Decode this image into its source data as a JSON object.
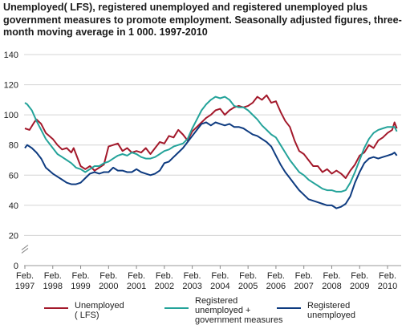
{
  "title": "Unemployed( LFS), registered unemployed and registered unemployed plus government measures to promote employment. Seasonally adjusted figures, three-month moving average in 1 000. 1997-2010",
  "chart_data": {
    "type": "line",
    "title": "Unemployed( LFS), registered unemployed and registered unemployed plus government measures to promote employment. Seasonally adjusted figures, three-month moving average in 1 000. 1997-2010",
    "xlabel": "",
    "ylabel": "",
    "ylim": [
      0,
      140
    ],
    "yticks": [
      0,
      20,
      40,
      60,
      80,
      100,
      120,
      140
    ],
    "y_axis_break": true,
    "grid": "horizontal",
    "legend_position": "bottom",
    "x_tick_labels": [
      {
        "month": "Feb.",
        "year": "1997"
      },
      {
        "month": "Feb.",
        "year": "1998"
      },
      {
        "month": "Feb.",
        "year": "1999"
      },
      {
        "month": "Feb.",
        "year": "2000"
      },
      {
        "month": "Feb.",
        "year": "2001"
      },
      {
        "month": "Feb.",
        "year": "2002"
      },
      {
        "month": "Feb.",
        "year": "2003"
      },
      {
        "month": "Feb.",
        "year": "2004"
      },
      {
        "month": "Feb.",
        "year": "2005"
      },
      {
        "month": "Feb.",
        "year": "2006"
      },
      {
        "month": "Feb.",
        "year": "2007"
      },
      {
        "month": "Feb.",
        "year": "2008"
      },
      {
        "month": "Feb.",
        "year": "2009"
      },
      {
        "month": "Feb.",
        "year": "2010"
      }
    ],
    "series": [
      {
        "name": "Unemployed ( LFS)",
        "color": "#a3192b",
        "points": [
          [
            "1997-02",
            91
          ],
          [
            "1997-04",
            90
          ],
          [
            "1997-06",
            95
          ],
          [
            "1997-07",
            97
          ],
          [
            "1997-09",
            94
          ],
          [
            "1997-11",
            88
          ],
          [
            "1998-02",
            84
          ],
          [
            "1998-04",
            80
          ],
          [
            "1998-06",
            77
          ],
          [
            "1998-08",
            78
          ],
          [
            "1998-10",
            75
          ],
          [
            "1998-11",
            78
          ],
          [
            "1999-01",
            70
          ],
          [
            "1999-02",
            66
          ],
          [
            "1999-04",
            64
          ],
          [
            "1999-06",
            66
          ],
          [
            "1999-08",
            63
          ],
          [
            "1999-10",
            65
          ],
          [
            "1999-12",
            67
          ],
          [
            "2000-02",
            79
          ],
          [
            "2000-04",
            80
          ],
          [
            "2000-06",
            81
          ],
          [
            "2000-08",
            76
          ],
          [
            "2000-10",
            78
          ],
          [
            "2000-12",
            75
          ],
          [
            "2001-02",
            76
          ],
          [
            "2001-04",
            75
          ],
          [
            "2001-06",
            78
          ],
          [
            "2001-08",
            74
          ],
          [
            "2001-10",
            78
          ],
          [
            "2001-12",
            82
          ],
          [
            "2002-02",
            81
          ],
          [
            "2002-04",
            86
          ],
          [
            "2002-06",
            85
          ],
          [
            "2002-08",
            90
          ],
          [
            "2002-10",
            87
          ],
          [
            "2002-12",
            83
          ],
          [
            "2003-02",
            89
          ],
          [
            "2003-04",
            92
          ],
          [
            "2003-06",
            95
          ],
          [
            "2003-08",
            98
          ],
          [
            "2003-10",
            100
          ],
          [
            "2003-12",
            103
          ],
          [
            "2004-02",
            104
          ],
          [
            "2004-04",
            100
          ],
          [
            "2004-06",
            103
          ],
          [
            "2004-08",
            105
          ],
          [
            "2004-10",
            106
          ],
          [
            "2004-12",
            105
          ],
          [
            "2005-02",
            106
          ],
          [
            "2005-04",
            108
          ],
          [
            "2005-06",
            112
          ],
          [
            "2005-08",
            110
          ],
          [
            "2005-10",
            113
          ],
          [
            "2005-12",
            108
          ],
          [
            "2006-02",
            109
          ],
          [
            "2006-04",
            102
          ],
          [
            "2006-06",
            96
          ],
          [
            "2006-08",
            92
          ],
          [
            "2006-10",
            83
          ],
          [
            "2006-12",
            76
          ],
          [
            "2007-02",
            74
          ],
          [
            "2007-04",
            70
          ],
          [
            "2007-06",
            66
          ],
          [
            "2007-08",
            66
          ],
          [
            "2007-10",
            62
          ],
          [
            "2007-12",
            64
          ],
          [
            "2008-02",
            61
          ],
          [
            "2008-04",
            63
          ],
          [
            "2008-06",
            61
          ],
          [
            "2008-08",
            58
          ],
          [
            "2008-10",
            63
          ],
          [
            "2008-12",
            67
          ],
          [
            "2009-02",
            73
          ],
          [
            "2009-04",
            75
          ],
          [
            "2009-06",
            80
          ],
          [
            "2009-08",
            78
          ],
          [
            "2009-10",
            83
          ],
          [
            "2009-12",
            85
          ],
          [
            "2010-02",
            88
          ],
          [
            "2010-04",
            90
          ],
          [
            "2010-05",
            95
          ],
          [
            "2010-06",
            91
          ]
        ]
      },
      {
        "name": "Registered unemployed + government measures",
        "color": "#24a39a",
        "points": [
          [
            "1997-02",
            108
          ],
          [
            "1997-03",
            107
          ],
          [
            "1997-05",
            103
          ],
          [
            "1997-07",
            96
          ],
          [
            "1997-09",
            90
          ],
          [
            "1997-11",
            84
          ],
          [
            "1998-02",
            78
          ],
          [
            "1998-04",
            74
          ],
          [
            "1998-06",
            72
          ],
          [
            "1998-08",
            70
          ],
          [
            "1998-10",
            68
          ],
          [
            "1998-12",
            65
          ],
          [
            "1999-02",
            64
          ],
          [
            "1999-04",
            62
          ],
          [
            "1999-06",
            64
          ],
          [
            "1999-08",
            66
          ],
          [
            "1999-10",
            66
          ],
          [
            "1999-12",
            68
          ],
          [
            "2000-02",
            69
          ],
          [
            "2000-04",
            71
          ],
          [
            "2000-06",
            73
          ],
          [
            "2000-08",
            74
          ],
          [
            "2000-10",
            73
          ],
          [
            "2000-12",
            75
          ],
          [
            "2001-02",
            74
          ],
          [
            "2001-04",
            72
          ],
          [
            "2001-06",
            71
          ],
          [
            "2001-08",
            71
          ],
          [
            "2001-10",
            72
          ],
          [
            "2001-12",
            74
          ],
          [
            "2002-02",
            76
          ],
          [
            "2002-04",
            77
          ],
          [
            "2002-06",
            79
          ],
          [
            "2002-08",
            80
          ],
          [
            "2002-10",
            81
          ],
          [
            "2002-12",
            84
          ],
          [
            "2003-02",
            91
          ],
          [
            "2003-04",
            97
          ],
          [
            "2003-06",
            103
          ],
          [
            "2003-08",
            107
          ],
          [
            "2003-10",
            110
          ],
          [
            "2003-12",
            112
          ],
          [
            "2004-02",
            111
          ],
          [
            "2004-04",
            112
          ],
          [
            "2004-06",
            110
          ],
          [
            "2004-08",
            106
          ],
          [
            "2004-10",
            105
          ],
          [
            "2004-12",
            105
          ],
          [
            "2005-02",
            103
          ],
          [
            "2005-04",
            100
          ],
          [
            "2005-06",
            97
          ],
          [
            "2005-08",
            93
          ],
          [
            "2005-10",
            90
          ],
          [
            "2005-12",
            87
          ],
          [
            "2006-02",
            85
          ],
          [
            "2006-04",
            80
          ],
          [
            "2006-06",
            75
          ],
          [
            "2006-08",
            70
          ],
          [
            "2006-10",
            66
          ],
          [
            "2006-12",
            62
          ],
          [
            "2007-02",
            60
          ],
          [
            "2007-04",
            57
          ],
          [
            "2007-06",
            55
          ],
          [
            "2007-08",
            53
          ],
          [
            "2007-10",
            51
          ],
          [
            "2007-12",
            50
          ],
          [
            "2008-02",
            50
          ],
          [
            "2008-04",
            49
          ],
          [
            "2008-06",
            49
          ],
          [
            "2008-08",
            50
          ],
          [
            "2008-10",
            55
          ],
          [
            "2008-12",
            62
          ],
          [
            "2009-02",
            70
          ],
          [
            "2009-04",
            78
          ],
          [
            "2009-06",
            84
          ],
          [
            "2009-08",
            88
          ],
          [
            "2009-10",
            90
          ],
          [
            "2009-12",
            91
          ],
          [
            "2010-02",
            92
          ],
          [
            "2010-04",
            92
          ],
          [
            "2010-05",
            92
          ],
          [
            "2010-06",
            89
          ]
        ]
      },
      {
        "name": "Registered unemployed",
        "color": "#0e3b80",
        "points": [
          [
            "1997-02",
            78
          ],
          [
            "1997-03",
            80
          ],
          [
            "1997-05",
            78
          ],
          [
            "1997-07",
            75
          ],
          [
            "1997-09",
            71
          ],
          [
            "1997-11",
            65
          ],
          [
            "1998-02",
            61
          ],
          [
            "1998-04",
            59
          ],
          [
            "1998-06",
            57
          ],
          [
            "1998-08",
            55
          ],
          [
            "1998-10",
            54
          ],
          [
            "1998-12",
            54
          ],
          [
            "1999-02",
            55
          ],
          [
            "1999-04",
            58
          ],
          [
            "1999-06",
            61
          ],
          [
            "1999-08",
            62
          ],
          [
            "1999-10",
            61
          ],
          [
            "1999-12",
            62
          ],
          [
            "2000-02",
            62
          ],
          [
            "2000-04",
            65
          ],
          [
            "2000-06",
            63
          ],
          [
            "2000-08",
            63
          ],
          [
            "2000-10",
            62
          ],
          [
            "2000-12",
            62
          ],
          [
            "2001-02",
            64
          ],
          [
            "2001-04",
            62
          ],
          [
            "2001-06",
            61
          ],
          [
            "2001-08",
            60
          ],
          [
            "2001-10",
            61
          ],
          [
            "2001-12",
            63
          ],
          [
            "2002-02",
            68
          ],
          [
            "2002-04",
            69
          ],
          [
            "2002-06",
            72
          ],
          [
            "2002-08",
            75
          ],
          [
            "2002-10",
            78
          ],
          [
            "2002-12",
            82
          ],
          [
            "2003-02",
            86
          ],
          [
            "2003-04",
            90
          ],
          [
            "2003-06",
            94
          ],
          [
            "2003-08",
            95
          ],
          [
            "2003-10",
            93
          ],
          [
            "2003-12",
            95
          ],
          [
            "2004-02",
            94
          ],
          [
            "2004-04",
            93
          ],
          [
            "2004-06",
            94
          ],
          [
            "2004-08",
            92
          ],
          [
            "2004-10",
            92
          ],
          [
            "2004-12",
            91
          ],
          [
            "2005-02",
            89
          ],
          [
            "2005-04",
            87
          ],
          [
            "2005-06",
            86
          ],
          [
            "2005-08",
            84
          ],
          [
            "2005-10",
            82
          ],
          [
            "2005-12",
            79
          ],
          [
            "2006-02",
            73
          ],
          [
            "2006-04",
            67
          ],
          [
            "2006-06",
            62
          ],
          [
            "2006-08",
            58
          ],
          [
            "2006-10",
            54
          ],
          [
            "2006-12",
            50
          ],
          [
            "2007-02",
            47
          ],
          [
            "2007-04",
            44
          ],
          [
            "2007-06",
            43
          ],
          [
            "2007-08",
            42
          ],
          [
            "2007-10",
            41
          ],
          [
            "2007-12",
            40
          ],
          [
            "2008-02",
            40
          ],
          [
            "2008-04",
            38
          ],
          [
            "2008-06",
            39
          ],
          [
            "2008-08",
            41
          ],
          [
            "2008-10",
            46
          ],
          [
            "2008-12",
            55
          ],
          [
            "2009-02",
            62
          ],
          [
            "2009-04",
            68
          ],
          [
            "2009-06",
            71
          ],
          [
            "2009-08",
            72
          ],
          [
            "2009-10",
            71
          ],
          [
            "2009-12",
            72
          ],
          [
            "2010-02",
            73
          ],
          [
            "2010-04",
            74
          ],
          [
            "2010-05",
            75
          ],
          [
            "2010-06",
            73
          ]
        ]
      }
    ],
    "legend": [
      {
        "lines": [
          "Unemployed",
          "( LFS)"
        ],
        "color": "#a3192b"
      },
      {
        "lines": [
          "Registered",
          "unemployed +",
          "government measures"
        ],
        "color": "#24a39a"
      },
      {
        "lines": [
          "Registered",
          "unemployed"
        ],
        "color": "#0e3b80"
      }
    ]
  }
}
